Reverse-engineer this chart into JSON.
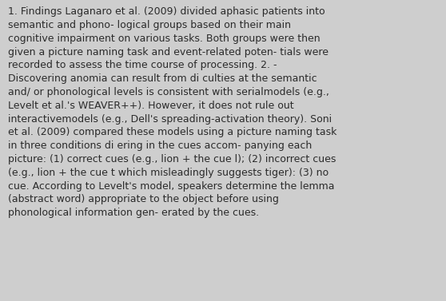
{
  "background_color": "#cecece",
  "text_color": "#2b2b2b",
  "font_size": 9.0,
  "font_family": "DejaVu Sans",
  "lines": [
    "1. Findings Laganaro et al. (2009) divided aphasic patients into",
    "semantic and phono- logical groups based on their main",
    "cognitive impairment on various tasks. Both groups were then",
    "given a picture naming task and event-related poten- tials were",
    "recorded to assess the time course of processing. 2. -",
    "Discovering anomia can result from di culties at the semantic",
    "and/ or phonological levels is consistent with serialmodels (e.g.,",
    "Levelt et al.'s WEAVER++). However, it does not rule out",
    "interactivemodels (e.g., Dell's spreading-activation theory). Soni",
    "et al. (2009) compared these models using a picture naming task",
    "in three conditions di ering in the cues accom- panying each",
    "picture: (1) correct cues (e.g., lion + the cue l); (2) incorrect cues",
    "(e.g., lion + the cue t which misleadingly suggests tiger): (3) no",
    "cue. According to Levelt's model, speakers determine the lemma",
    "(abstract word) appropriate to the object before using",
    "phonological information gen- erated by the cues."
  ]
}
